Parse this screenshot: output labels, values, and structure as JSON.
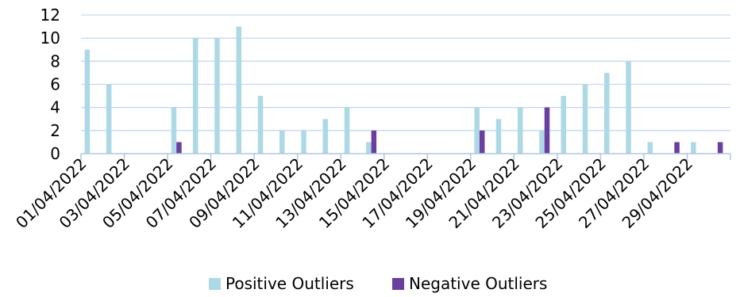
{
  "chart_data": {
    "type": "bar",
    "title": "",
    "xlabel": "",
    "ylabel": "",
    "ylim": [
      0,
      12
    ],
    "yticks": [
      0,
      2,
      4,
      6,
      8,
      10,
      12
    ],
    "grid": true,
    "legend_position": "bottom",
    "categories": [
      "01/04/2022",
      "02/04/2022",
      "03/04/2022",
      "04/04/2022",
      "05/04/2022",
      "06/04/2022",
      "07/04/2022",
      "08/04/2022",
      "09/04/2022",
      "10/04/2022",
      "11/04/2022",
      "12/04/2022",
      "13/04/2022",
      "14/04/2022",
      "15/04/2022",
      "16/04/2022",
      "17/04/2022",
      "18/04/2022",
      "19/04/2022",
      "20/04/2022",
      "21/04/2022",
      "22/04/2022",
      "23/04/2022",
      "24/04/2022",
      "25/04/2022",
      "26/04/2022",
      "27/04/2022",
      "28/04/2022",
      "29/04/2022",
      "30/04/2022"
    ],
    "tick_labels_shown": [
      "01/04/2022",
      "03/04/2022",
      "05/04/2022",
      "07/04/2022",
      "09/04/2022",
      "11/04/2022",
      "13/04/2022",
      "15/04/2022",
      "17/04/2022",
      "19/04/2022",
      "21/04/2022",
      "23/04/2022",
      "25/04/2022",
      "27/04/2022",
      "29/04/2022"
    ],
    "series": [
      {
        "name": "Positive Outliers",
        "color": "#ADD8E6",
        "values": [
          9,
          6,
          0,
          0,
          4,
          10,
          10,
          11,
          5,
          2,
          2,
          3,
          4,
          1,
          0,
          0,
          0,
          0,
          4,
          3,
          4,
          2,
          5,
          6,
          7,
          8,
          1,
          0,
          1,
          0
        ]
      },
      {
        "name": "Negative Outliers",
        "color": "#6A3FA0",
        "values": [
          0,
          0,
          0,
          0,
          1,
          0,
          0,
          0,
          0,
          0,
          0,
          0,
          0,
          2,
          0,
          0,
          0,
          0,
          2,
          0,
          0,
          4,
          0,
          0,
          0,
          0,
          0,
          1,
          0,
          1
        ]
      }
    ],
    "colors": {
      "grid": "#C5D9F1",
      "axis": "#AFC6E3",
      "text": "#000000"
    }
  }
}
